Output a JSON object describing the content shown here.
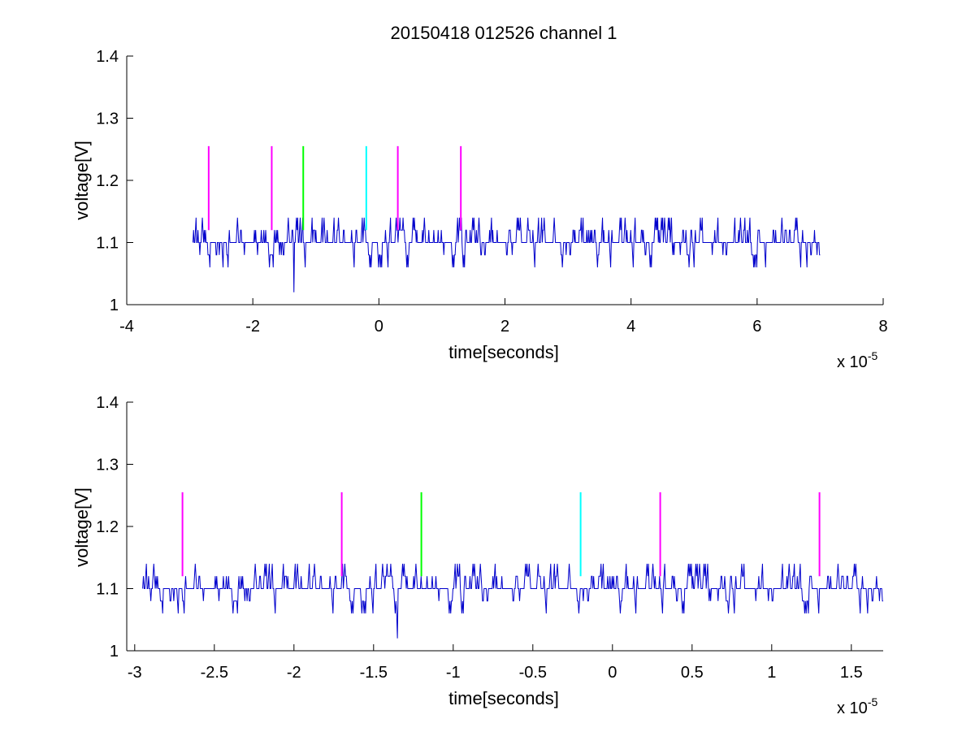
{
  "chart_data": [
    {
      "type": "line",
      "title": "20150418 012526 channel 1",
      "xlabel": "time[seconds]",
      "ylabel": "voltage[V]",
      "x_multiplier": "x 10",
      "x_exponent": "-5",
      "xlim": [
        -4,
        8
      ],
      "ylim": [
        1,
        1.4
      ],
      "xticks": [
        -4,
        -2,
        0,
        2,
        4,
        6,
        8
      ],
      "xtick_labels": [
        "-4",
        "-2",
        "0",
        "2",
        "4",
        "6",
        "8"
      ],
      "yticks": [
        1,
        1.1,
        1.2,
        1.3,
        1.4
      ],
      "ytick_labels": [
        "1",
        "1.1",
        "1.2",
        "1.3",
        "1.4"
      ],
      "grid": false,
      "signal": {
        "color": "#0000cc",
        "x_start": -2.95,
        "x_end": 7.0,
        "baseline": 1.1,
        "levels": [
          1.06,
          1.08,
          1.1,
          1.12,
          1.14
        ],
        "min_point": {
          "x": -1.35,
          "y": 1.02
        }
      },
      "markers": [
        {
          "x": -2.7,
          "y0": 1.12,
          "y1": 1.255,
          "color": "#ff00ff"
        },
        {
          "x": -1.7,
          "y0": 1.12,
          "y1": 1.255,
          "color": "#ff00ff"
        },
        {
          "x": -1.2,
          "y0": 1.12,
          "y1": 1.255,
          "color": "#00ff00"
        },
        {
          "x": -0.2,
          "y0": 1.12,
          "y1": 1.255,
          "color": "#00ffff"
        },
        {
          "x": 0.3,
          "y0": 1.12,
          "y1": 1.255,
          "color": "#ff00ff"
        },
        {
          "x": 1.3,
          "y0": 1.12,
          "y1": 1.255,
          "color": "#ff00ff"
        }
      ]
    },
    {
      "type": "line",
      "title": "",
      "xlabel": "time[seconds]",
      "ylabel": "voltage[V]",
      "x_multiplier": "x 10",
      "x_exponent": "-5",
      "xlim": [
        -3.05,
        1.7
      ],
      "ylim": [
        1,
        1.4
      ],
      "xticks": [
        -3,
        -2.5,
        -2,
        -1.5,
        -1,
        -0.5,
        0,
        0.5,
        1,
        1.5
      ],
      "xtick_labels": [
        "-3",
        "-2.5",
        "-2",
        "-1.5",
        "-1",
        "-0.5",
        "0",
        "0.5",
        "1",
        "1.5"
      ],
      "yticks": [
        1,
        1.1,
        1.2,
        1.3,
        1.4
      ],
      "ytick_labels": [
        "1",
        "1.1",
        "1.2",
        "1.3",
        "1.4"
      ],
      "grid": false,
      "signal": {
        "color": "#0000cc",
        "x_start": -2.95,
        "x_end": 1.7,
        "baseline": 1.1,
        "levels": [
          1.06,
          1.08,
          1.1,
          1.12,
          1.14
        ],
        "min_point": {
          "x": -1.35,
          "y": 1.02
        }
      },
      "markers": [
        {
          "x": -2.7,
          "y0": 1.12,
          "y1": 1.255,
          "color": "#ff00ff"
        },
        {
          "x": -1.7,
          "y0": 1.12,
          "y1": 1.255,
          "color": "#ff00ff"
        },
        {
          "x": -1.2,
          "y0": 1.12,
          "y1": 1.255,
          "color": "#00ff00"
        },
        {
          "x": -0.2,
          "y0": 1.12,
          "y1": 1.255,
          "color": "#00ffff"
        },
        {
          "x": 0.3,
          "y0": 1.12,
          "y1": 1.255,
          "color": "#ff00ff"
        },
        {
          "x": 1.3,
          "y0": 1.12,
          "y1": 1.255,
          "color": "#ff00ff"
        }
      ]
    }
  ]
}
